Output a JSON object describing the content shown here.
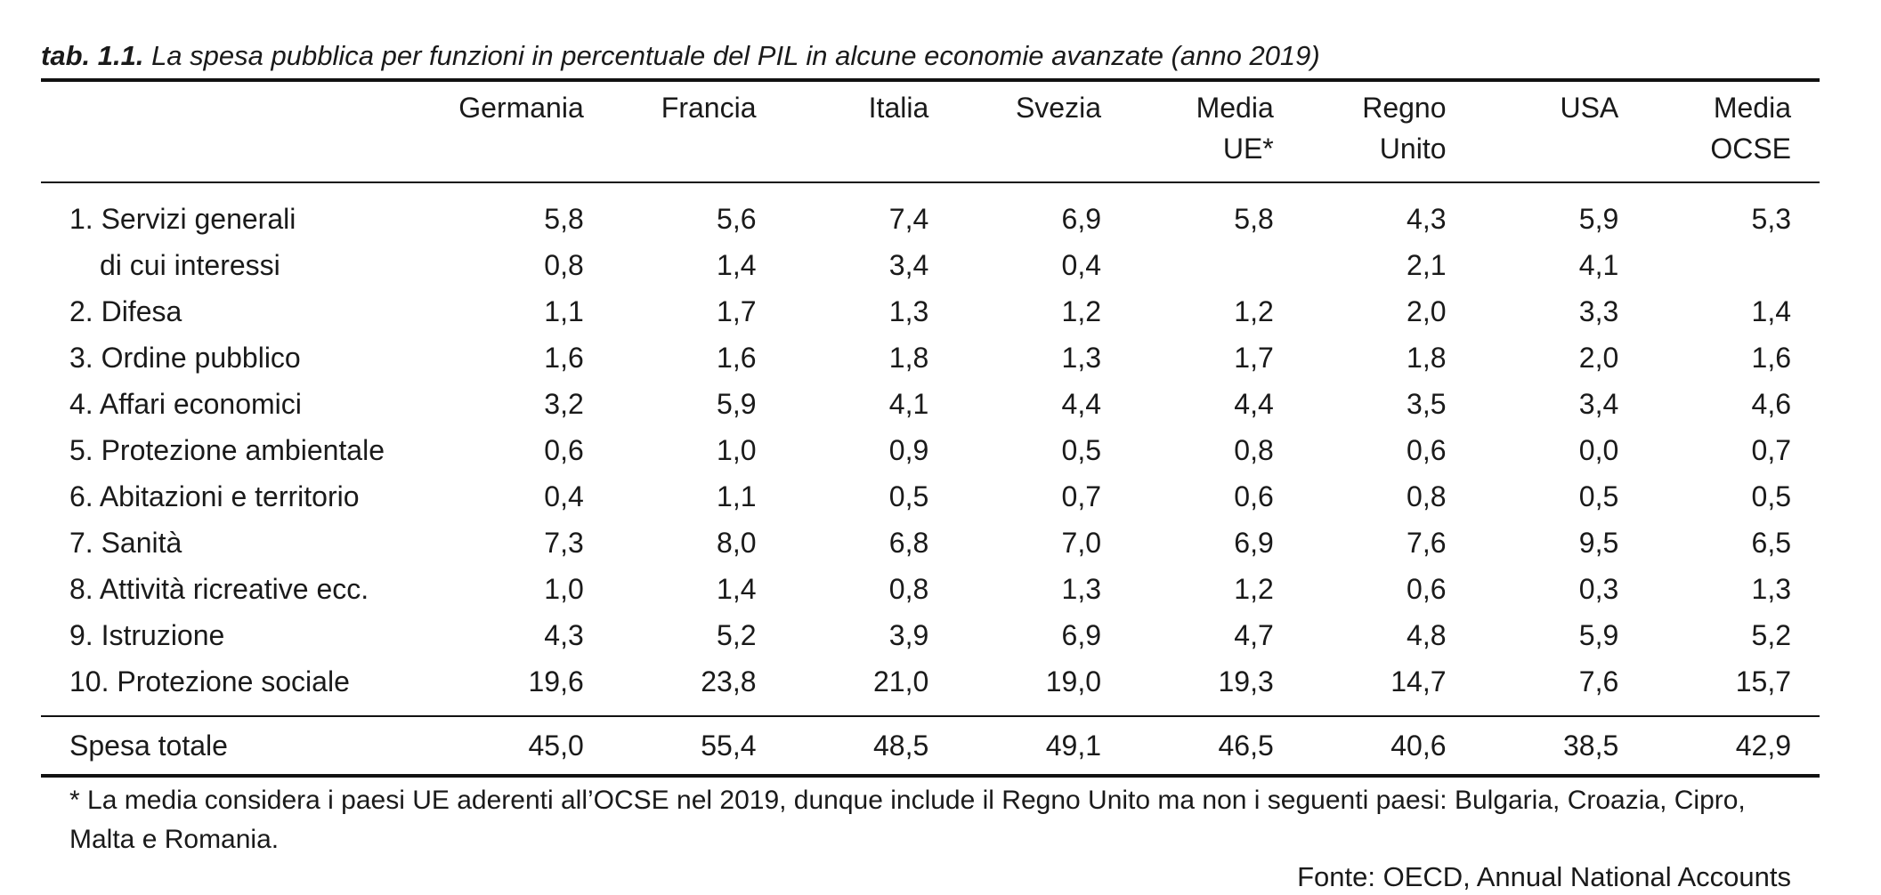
{
  "caption": {
    "label": "tab. 1.1.",
    "title": "La spesa pubblica per funzioni in percentuale del PIL in alcune economie avanzate (anno 2019)"
  },
  "columns": [
    {
      "line1": "Germania",
      "line2": ""
    },
    {
      "line1": "Francia",
      "line2": ""
    },
    {
      "line1": "Italia",
      "line2": ""
    },
    {
      "line1": "Svezia",
      "line2": ""
    },
    {
      "line1": "Media",
      "line2": "UE*"
    },
    {
      "line1": "Regno",
      "line2": "Unito"
    },
    {
      "line1": "USA",
      "line2": ""
    },
    {
      "line1": "Media",
      "line2": "OCSE"
    }
  ],
  "rows": [
    {
      "label": "1. Servizi generali",
      "sub": false,
      "values": [
        "5,8",
        "5,6",
        "7,4",
        "6,9",
        "5,8",
        "4,3",
        "5,9",
        "5,3"
      ]
    },
    {
      "label": "di cui interessi",
      "sub": true,
      "values": [
        "0,8",
        "1,4",
        "3,4",
        "0,4",
        "",
        "2,1",
        "4,1",
        ""
      ]
    },
    {
      "label": "2. Difesa",
      "sub": false,
      "values": [
        "1,1",
        "1,7",
        "1,3",
        "1,2",
        "1,2",
        "2,0",
        "3,3",
        "1,4"
      ]
    },
    {
      "label": "3. Ordine pubblico",
      "sub": false,
      "values": [
        "1,6",
        "1,6",
        "1,8",
        "1,3",
        "1,7",
        "1,8",
        "2,0",
        "1,6"
      ]
    },
    {
      "label": "4. Affari economici",
      "sub": false,
      "values": [
        "3,2",
        "5,9",
        "4,1",
        "4,4",
        "4,4",
        "3,5",
        "3,4",
        "4,6"
      ]
    },
    {
      "label": "5. Protezione ambientale",
      "sub": false,
      "values": [
        "0,6",
        "1,0",
        "0,9",
        "0,5",
        "0,8",
        "0,6",
        "0,0",
        "0,7"
      ]
    },
    {
      "label": "6. Abitazioni e territorio",
      "sub": false,
      "values": [
        "0,4",
        "1,1",
        "0,5",
        "0,7",
        "0,6",
        "0,8",
        "0,5",
        "0,5"
      ]
    },
    {
      "label": "7. Sanità",
      "sub": false,
      "values": [
        "7,3",
        "8,0",
        "6,8",
        "7,0",
        "6,9",
        "7,6",
        "9,5",
        "6,5"
      ]
    },
    {
      "label": "8. Attività ricreative ecc.",
      "sub": false,
      "values": [
        "1,0",
        "1,4",
        "0,8",
        "1,3",
        "1,2",
        "0,6",
        "0,3",
        "1,3"
      ]
    },
    {
      "label": "9. Istruzione",
      "sub": false,
      "values": [
        "4,3",
        "5,2",
        "3,9",
        "6,9",
        "4,7",
        "4,8",
        "5,9",
        "5,2"
      ]
    },
    {
      "label": "10. Protezione sociale",
      "sub": false,
      "values": [
        "19,6",
        "23,8",
        "21,0",
        "19,0",
        "19,3",
        "14,7",
        "7,6",
        "15,7"
      ]
    }
  ],
  "total": {
    "label": "Spesa totale",
    "values": [
      "45,0",
      "55,4",
      "48,5",
      "49,1",
      "46,5",
      "40,6",
      "38,5",
      "42,9"
    ]
  },
  "footnote": "* La media considera i paesi UE aderenti all’OCSE nel 2019, dunque include il Regno Unito ma non i seguenti paesi: Bulgaria, Croazia, Cipro, Malta e Romania.",
  "source": "Fonte: OECD, Annual National Accounts"
}
